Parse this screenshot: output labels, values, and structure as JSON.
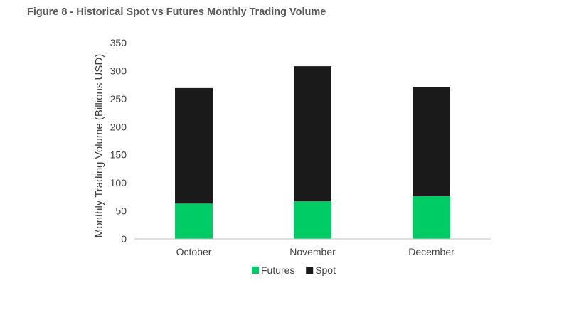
{
  "title": "Figure 8 - Historical Spot vs Futures Monthly Trading Volume",
  "chart_data": {
    "type": "bar",
    "stacked": true,
    "title": "Figure 8 - Historical Spot vs Futures Monthly Trading Volume",
    "xlabel": "",
    "ylabel": "Monthly Trading Volume (Billions USD)",
    "ylim": [
      0,
      350
    ],
    "yticks": [
      0,
      50,
      100,
      150,
      200,
      250,
      300,
      350
    ],
    "categories": [
      "October",
      "November",
      "December"
    ],
    "series": [
      {
        "name": "Futures",
        "color": "#00CC66",
        "values": [
          63,
          67,
          76
        ]
      },
      {
        "name": "Spot",
        "color": "#1a1a1a",
        "values": [
          206,
          241,
          195
        ]
      }
    ],
    "grid": false,
    "legend": "bottom"
  }
}
